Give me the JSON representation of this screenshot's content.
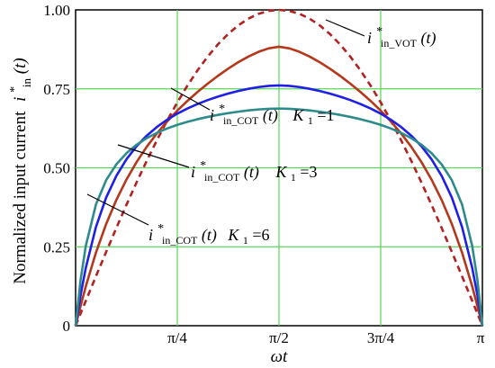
{
  "chart_data": {
    "type": "line",
    "xlabel": "ωt",
    "ylabel": "Normalized input current",
    "ylabel_symbol": "i",
    "ylabel_sup": "*",
    "ylabel_sub": "in",
    "ylabel_arg": "(t)",
    "xlim": [
      0,
      3.14159
    ],
    "ylim": [
      0,
      1.0
    ],
    "grid": true,
    "x_ticks": [
      {
        "value": 0,
        "label": "0"
      },
      {
        "value": 0.7854,
        "label": "π/4"
      },
      {
        "value": 1.5708,
        "label": "π/2"
      },
      {
        "value": 2.3562,
        "label": "3π/4"
      },
      {
        "value": 3.14159,
        "label": "π"
      }
    ],
    "y_ticks": [
      {
        "value": 0,
        "label": "0"
      },
      {
        "value": 0.25,
        "label": "0.25"
      },
      {
        "value": 0.5,
        "label": "0.50"
      },
      {
        "value": 0.75,
        "label": "0.75"
      },
      {
        "value": 1.0,
        "label": "1.00"
      }
    ],
    "x": [
      0,
      0.0393,
      0.0785,
      0.1571,
      0.2356,
      0.3142,
      0.3927,
      0.4712,
      0.5498,
      0.6283,
      0.7069,
      0.7854,
      0.8639,
      0.9425,
      1.021,
      1.0996,
      1.1781,
      1.2566,
      1.3352,
      1.4137,
      1.4923,
      1.5708,
      1.6493,
      1.7279,
      1.8064,
      1.885,
      1.9635,
      2.042,
      2.1206,
      2.1991,
      2.2777,
      2.3562,
      2.4347,
      2.5133,
      2.5918,
      2.6704,
      2.7489,
      2.8274,
      2.906,
      2.9845,
      3.0631,
      3.1023,
      3.1416
    ],
    "series": [
      {
        "color": "#b22222",
        "dashed": true,
        "values": [
          0,
          0.0393,
          0.0785,
          0.1564,
          0.2334,
          0.309,
          0.3827,
          0.454,
          0.5225,
          0.5878,
          0.6494,
          0.7071,
          0.7604,
          0.809,
          0.8526,
          0.891,
          0.9239,
          0.9511,
          0.9724,
          0.9877,
          0.9969,
          1.0,
          0.9969,
          0.9877,
          0.9724,
          0.9511,
          0.9239,
          0.891,
          0.8526,
          0.809,
          0.7604,
          0.7071,
          0.6494,
          0.5878,
          0.5225,
          0.454,
          0.3827,
          0.309,
          0.2334,
          0.1564,
          0.0785,
          0.0393,
          0
        ]
      },
      {
        "color": "#b5371c",
        "dashed": false,
        "values": [
          0,
          0.0638,
          0.1243,
          0.2313,
          0.3217,
          0.3978,
          0.4627,
          0.5184,
          0.5667,
          0.6091,
          0.6468,
          0.681,
          0.7119,
          0.7404,
          0.7668,
          0.7913,
          0.8139,
          0.8344,
          0.8524,
          0.8674,
          0.8784,
          0.8833,
          0.8784,
          0.8674,
          0.8524,
          0.8344,
          0.8139,
          0.7913,
          0.7668,
          0.7404,
          0.7119,
          0.681,
          0.6468,
          0.6091,
          0.5667,
          0.5184,
          0.4627,
          0.3978,
          0.3217,
          0.2313,
          0.1243,
          0.0638,
          0
        ]
      },
      {
        "color": "#1f1fe6",
        "dashed": false,
        "values": [
          0,
          0.0986,
          0.1827,
          0.3126,
          0.4054,
          0.4742,
          0.527,
          0.5686,
          0.602,
          0.6294,
          0.6522,
          0.6715,
          0.6879,
          0.7022,
          0.7146,
          0.7255,
          0.735,
          0.7433,
          0.7502,
          0.7557,
          0.7594,
          0.7609,
          0.7594,
          0.7557,
          0.7502,
          0.7433,
          0.735,
          0.7255,
          0.7146,
          0.7022,
          0.6879,
          0.6715,
          0.6522,
          0.6294,
          0.602,
          0.5686,
          0.527,
          0.4742,
          0.4054,
          0.3126,
          0.1827,
          0.0986,
          0
        ]
      },
      {
        "color": "#2e8b8b",
        "dashed": false,
        "values": [
          0,
          0.1474,
          0.2521,
          0.3838,
          0.4605,
          0.5107,
          0.5464,
          0.5732,
          0.594,
          0.6108,
          0.6245,
          0.636,
          0.6457,
          0.654,
          0.6612,
          0.6675,
          0.673,
          0.6777,
          0.6817,
          0.6848,
          0.6869,
          0.6877,
          0.6869,
          0.6848,
          0.6817,
          0.6777,
          0.673,
          0.6675,
          0.6612,
          0.654,
          0.6457,
          0.636,
          0.6245,
          0.6108,
          0.594,
          0.5732,
          0.5464,
          0.5107,
          0.4605,
          0.3838,
          0.2521,
          0.1474,
          0
        ]
      }
    ],
    "annotations": [
      {
        "sub": "in_VOT",
        "rest": ""
      },
      {
        "sub": "in_COT",
        "rest": "K",
        "k_sub": "1",
        "k_val": "=1"
      },
      {
        "sub": "in_COT",
        "rest": "K",
        "k_sub": "1",
        "k_val": "=3"
      },
      {
        "sub": "in_COT",
        "rest": "K",
        "k_sub": "1",
        "k_val": " =6"
      }
    ],
    "annotation_symbol": "i",
    "annotation_sup": "*",
    "annotation_arg": "(t)"
  }
}
